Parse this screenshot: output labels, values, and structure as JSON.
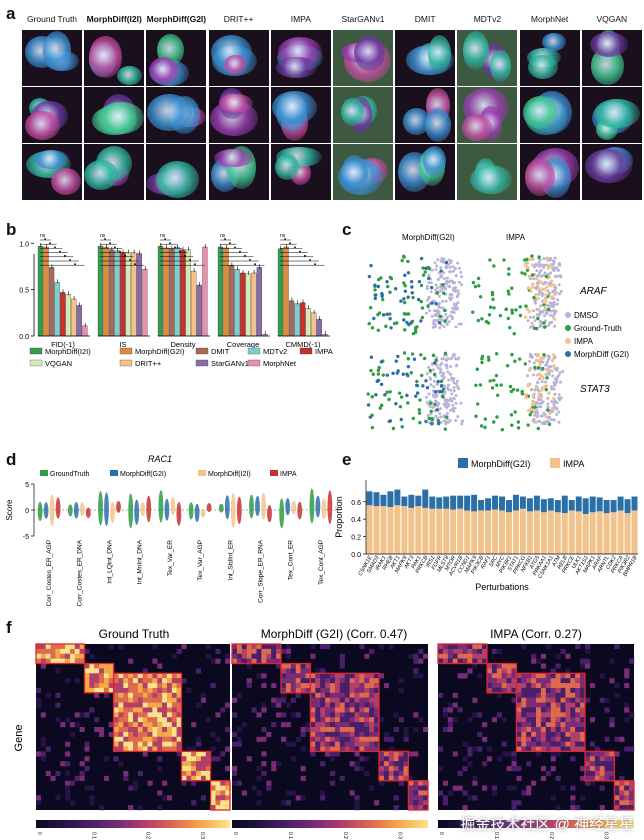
{
  "panel_labels": {
    "a": "a",
    "b": "b",
    "c": "c",
    "d": "d",
    "e": "e",
    "f": "f"
  },
  "panel_a": {
    "columns": [
      {
        "label": "Ground Truth",
        "bold": false
      },
      {
        "label": "MorphDiff(I2I)",
        "bold": true
      },
      {
        "label": "MorphDiff(G2I)",
        "bold": true
      },
      {
        "label": "DRIT++",
        "bold": false
      },
      {
        "label": "IMPA",
        "bold": false
      },
      {
        "label": "StarGANv1",
        "bold": false
      },
      {
        "label": "DMIT",
        "bold": false
      },
      {
        "label": "MDTv2",
        "bold": false
      },
      {
        "label": "MorphNet",
        "bold": false
      },
      {
        "label": "VQGAN",
        "bold": false
      }
    ]
  },
  "panel_b": {
    "chart_data": {
      "type": "bar",
      "metrics": [
        "FID(-1)",
        "IS",
        "Density",
        "Coverage",
        "CMMD(-1)"
      ],
      "series": [
        {
          "name": "MorphDiff(I2I)",
          "color": "#3a9a4e",
          "values": [
            0.97,
            0.97,
            0.97,
            0.96,
            0.94
          ]
        },
        {
          "name": "MorphDiff(G2I)",
          "color": "#e08a3a",
          "values": [
            0.96,
            0.96,
            0.95,
            0.95,
            0.96
          ]
        },
        {
          "name": "DMIT",
          "color": "#a86b5a",
          "values": [
            0.74,
            0.93,
            0.94,
            0.76,
            0.38
          ]
        },
        {
          "name": "MDTv2",
          "color": "#7ecfd0",
          "values": [
            0.58,
            0.92,
            0.96,
            0.72,
            0.35
          ]
        },
        {
          "name": "IMPA",
          "color": "#c8302e",
          "values": [
            0.47,
            0.9,
            0.93,
            0.68,
            0.36
          ]
        },
        {
          "name": "VQGAN",
          "color": "#d6e8b5",
          "values": [
            0.45,
            0.9,
            0.93,
            0.67,
            0.3
          ]
        },
        {
          "name": "DRIT++",
          "color": "#f4c38c",
          "values": [
            0.4,
            0.9,
            0.7,
            0.68,
            0.25
          ]
        },
        {
          "name": "StarGANv1",
          "color": "#8b6aa8",
          "values": [
            0.33,
            0.89,
            0.55,
            0.74,
            0.18
          ]
        },
        {
          "name": "MorphNet",
          "color": "#e98fb0",
          "values": [
            0.11,
            0.72,
            0.96,
            0.02,
            0.02
          ]
        }
      ],
      "yticks": [
        "0.0",
        "0.5",
        "1.0"
      ],
      "ylim": [
        0,
        1.1
      ],
      "sig_label": "ns"
    }
  },
  "panel_c": {
    "titles": [
      "MorphDiff(G2I)",
      "IMPA"
    ],
    "rows": [
      "ARAF",
      "STAT3"
    ],
    "legend": [
      {
        "name": "DMSO",
        "color": "#b9b3d8"
      },
      {
        "name": "Ground-Truth",
        "color": "#2e9c44"
      },
      {
        "name": "IMPA",
        "color": "#f2c48c"
      },
      {
        "name": "MorphDiff (G2I)",
        "color": "#2b6fa8"
      }
    ]
  },
  "panel_d": {
    "title": "RAC1",
    "ylabel": "Score",
    "yticks": [
      "5",
      "0",
      "-5"
    ],
    "legend": [
      {
        "name": "GroundTruth",
        "color": "#2e9c44"
      },
      {
        "name": "MorphDiff(G2I)",
        "color": "#2b6fa8"
      },
      {
        "name": "MorphDiff(I2I)",
        "color": "#f2c48c"
      },
      {
        "name": "IMPA",
        "color": "#c8302e"
      }
    ],
    "categories": [
      "Corr_Costes_ER_AGP",
      "Corr_Costes_ER_DNA",
      "Int_LQint_DNA",
      "Int_MnInt_DNA",
      "Tex_Var_ER",
      "Tex_Var_AGP",
      "Int_StdInt_ER",
      "Corr_Slope_ER_RNA",
      "Tex_Cont_ER",
      "Tex_Cont_AGP"
    ]
  },
  "panel_e": {
    "chart_data": {
      "type": "bar",
      "xlabel": "Perturbations",
      "ylabel": "Proportion",
      "yticks": [
        "0.0",
        "0.2",
        "0.4",
        "0.6"
      ],
      "ylim": [
        0,
        0.85
      ],
      "series": [
        {
          "name": "MorphDiff(G2I)",
          "color": "#2b6fa8"
        },
        {
          "name": "IMPA",
          "color": "#f2c48c"
        }
      ],
      "categories": [
        "CSNK1E",
        "SMAD3",
        "IRAK1",
        "RHEB",
        "AKT1",
        "MAPK8",
        "AKT3",
        "PAK1",
        "PRKCB",
        "IRS1",
        "FGFR",
        "MLST8",
        "MTOR",
        "ACVR1B",
        "CCND1",
        "MAPK9",
        "PIK3CB",
        "RAF1",
        "SRC",
        "MYC",
        "PIK3R1",
        "STAT1",
        "PRKCG",
        "NFKB1",
        "ATG5",
        "PRKAA1",
        "CSNK1A1",
        "ATM",
        "RELB",
        "PRKCE",
        "ULK1",
        "AKT1S1",
        "MAPK1",
        "ARAF",
        "ARNTL",
        "CDK2",
        "PRKCA",
        "PIK3R2",
        "BMPR1B"
      ],
      "impa": [
        0.56,
        0.55,
        0.55,
        0.54,
        0.56,
        0.55,
        0.53,
        0.55,
        0.53,
        0.52,
        0.52,
        0.52,
        0.51,
        0.52,
        0.5,
        0.49,
        0.5,
        0.5,
        0.51,
        0.5,
        0.48,
        0.5,
        0.52,
        0.49,
        0.5,
        0.48,
        0.5,
        0.48,
        0.47,
        0.5,
        0.49,
        0.46,
        0.48,
        0.49,
        0.47,
        0.48,
        0.5,
        0.47,
        0.5
      ],
      "total": [
        0.72,
        0.71,
        0.68,
        0.72,
        0.74,
        0.66,
        0.68,
        0.67,
        0.74,
        0.66,
        0.65,
        0.66,
        0.67,
        0.67,
        0.67,
        0.68,
        0.62,
        0.64,
        0.67,
        0.66,
        0.62,
        0.68,
        0.66,
        0.64,
        0.67,
        0.63,
        0.64,
        0.62,
        0.67,
        0.62,
        0.66,
        0.64,
        0.66,
        0.65,
        0.62,
        0.62,
        0.66,
        0.63,
        0.66
      ]
    }
  },
  "panel_f": {
    "titles": [
      "Ground Truth",
      "MorphDiff (G2I) (Corr. 0.47)",
      "IMPA (Corr. 0.27)"
    ],
    "ylabel": "Gene",
    "colorbar_ticks": [
      "0",
      "0.1",
      "0.2",
      "0.3"
    ]
  },
  "watermark": "掘金技术社区 @ 神经星星"
}
